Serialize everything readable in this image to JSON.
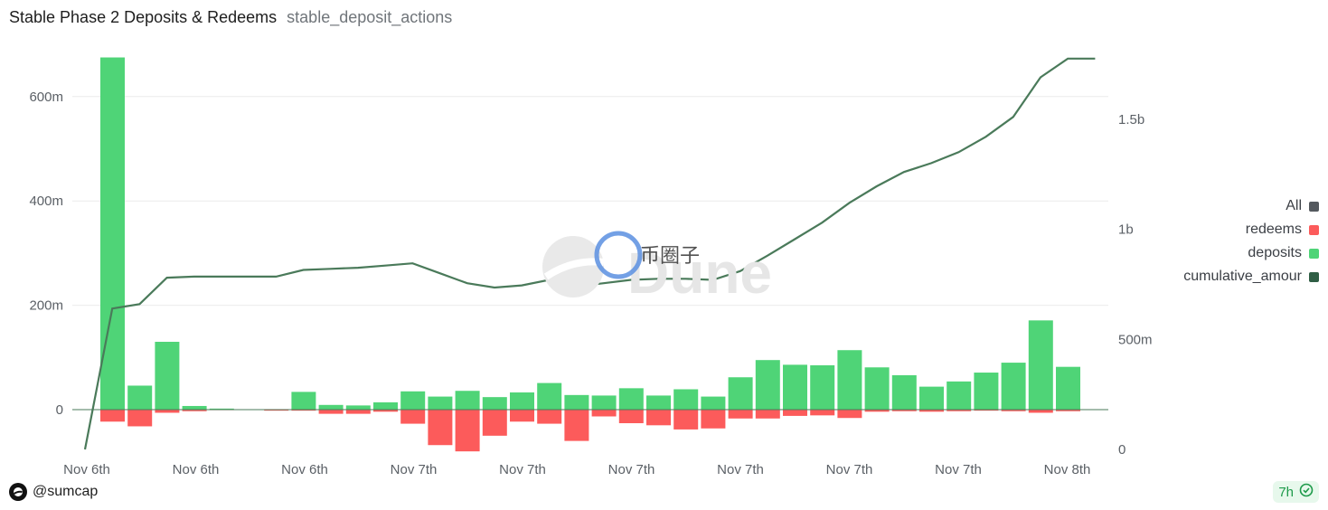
{
  "header": {
    "title": "Stable Phase 2 Deposits & Redeems",
    "subtitle": "stable_deposit_actions"
  },
  "watermark": {
    "brand_text": "Dune",
    "overlay_text": "币圈子"
  },
  "footer": {
    "author": "@sumcap",
    "age": "7h"
  },
  "colors": {
    "deposits": "#4fd477",
    "redeems": "#fc5b5b",
    "cumulative": "#4a7a5a",
    "all": "#54595e"
  },
  "chart_data": {
    "type": "bar",
    "title": "Stable Phase 2 Deposits & Redeems",
    "legend_position": "right",
    "legend": [
      "All",
      "redeems",
      "deposits",
      "cumulative_amour"
    ],
    "y_left": {
      "ticks": [
        0,
        200,
        400,
        600
      ],
      "tick_labels": [
        "0",
        "200m",
        "400m",
        "600m"
      ],
      "range": [
        -80,
        680
      ],
      "unit": "m"
    },
    "y_right": {
      "ticks": [
        0,
        0.5,
        1.0,
        1.5
      ],
      "tick_labels": [
        "0",
        "500m",
        "1b",
        "1.5b"
      ],
      "range": [
        0,
        1.78
      ],
      "unit": "b"
    },
    "x_tick_labels": [
      "Nov 6th",
      "Nov 6th",
      "Nov 6th",
      "Nov 7th",
      "Nov 7th",
      "Nov 7th",
      "Nov 7th",
      "Nov 7th",
      "Nov 7th",
      "Nov 8th"
    ],
    "deposits": [
      675,
      46,
      130,
      7,
      2,
      0,
      0,
      34,
      9,
      8,
      14,
      35,
      25,
      36,
      24,
      33,
      51,
      28,
      27,
      41,
      27,
      39,
      25,
      62,
      95,
      86,
      85,
      114,
      81,
      66,
      44,
      54,
      71,
      90,
      171,
      82
    ],
    "redeems": [
      -23,
      -32,
      -6,
      -3,
      -1,
      0,
      -2,
      -2,
      -8,
      -8,
      -4,
      -27,
      -68,
      -80,
      -50,
      -23,
      -27,
      -60,
      -13,
      -26,
      -30,
      -38,
      -36,
      -17,
      -17,
      -12,
      -11,
      -16,
      -4,
      -3,
      -4,
      -3,
      -2,
      -3,
      -6,
      -3
    ],
    "cumulative": [
      0,
      0.64,
      0.66,
      0.78,
      0.785,
      0.785,
      0.785,
      0.785,
      0.815,
      0.82,
      0.825,
      0.835,
      0.845,
      0.8,
      0.755,
      0.735,
      0.745,
      0.77,
      0.74,
      0.755,
      0.77,
      0.775,
      0.775,
      0.77,
      0.81,
      0.88,
      0.955,
      1.03,
      1.12,
      1.195,
      1.26,
      1.3,
      1.35,
      1.42,
      1.51,
      1.69,
      1.775,
      1.775
    ]
  }
}
